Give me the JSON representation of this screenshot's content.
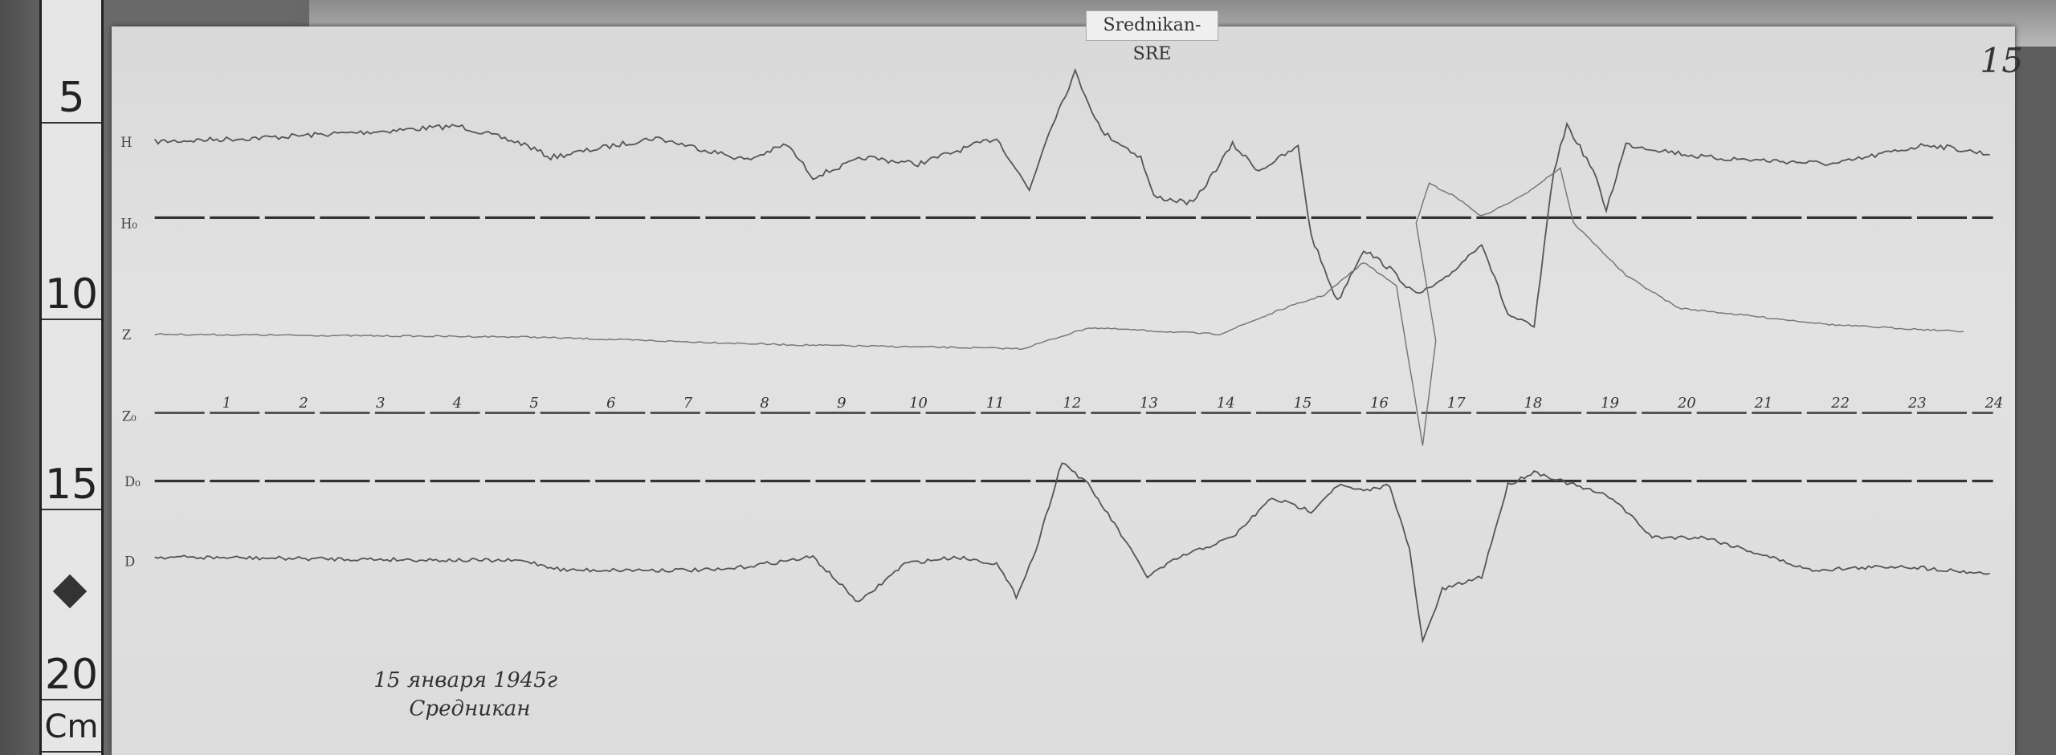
{
  "record_label": "Srednikan-SRE",
  "page_number": "15",
  "ruler": {
    "marks": [
      "5",
      "10",
      "15",
      "20",
      "Cm"
    ]
  },
  "traces": {
    "h_label": "H",
    "h0_label": "H₀",
    "z_label": "Z",
    "z0_label": "Z₀",
    "d_label": "D",
    "d0_label": "D₀"
  },
  "hours": [
    "1",
    "2",
    "3",
    "4",
    "5",
    "6",
    "7",
    "8",
    "9",
    "10",
    "11",
    "12",
    "13",
    "14",
    "15",
    "16",
    "17",
    "18",
    "19",
    "20",
    "21",
    "22",
    "23",
    "24"
  ],
  "note": {
    "line1": "15 января 1945г",
    "line2": "Средникан"
  },
  "colors": {
    "paper": "#e0e0e0",
    "trace": "#555555",
    "baseline": "#333333"
  }
}
